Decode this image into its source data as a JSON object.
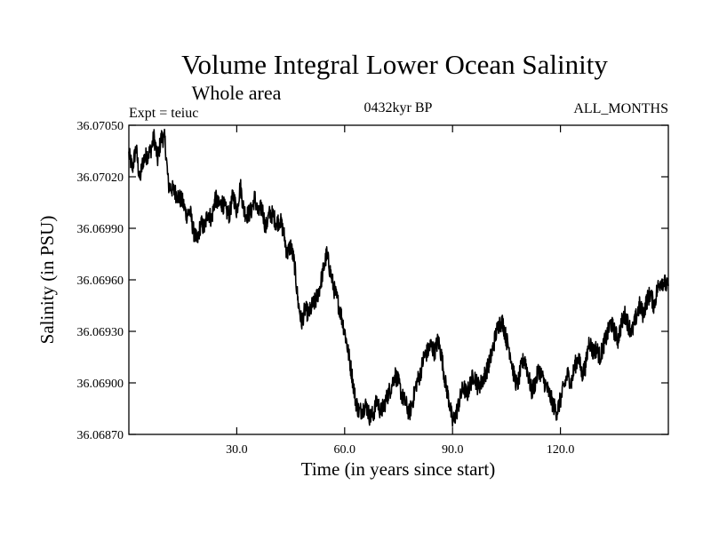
{
  "chart_data": {
    "type": "line",
    "title": "Volume Integral Lower Ocean Salinity",
    "subtitle": "Whole area",
    "label_left": "Expt = teiuc",
    "label_center": "0432kyr BP",
    "label_right": "ALL_MONTHS",
    "xlabel": "Time (in years since start)",
    "ylabel": "Salinity (in PSU)",
    "xlim": [
      0,
      150
    ],
    "ylim": [
      36.0687,
      36.0705
    ],
    "xticks": [
      30,
      60,
      90,
      120
    ],
    "xtick_labels": [
      "30.0",
      "60.0",
      "90.0",
      "120.0"
    ],
    "yticks": [
      36.0687,
      36.069,
      36.0693,
      36.0696,
      36.0699,
      36.0702,
      36.0705
    ],
    "ytick_labels": [
      "36.06870",
      "36.06900",
      "36.06930",
      "36.06960",
      "36.06990",
      "36.07020",
      "36.07050"
    ],
    "anchors": [
      [
        0,
        36.07033
      ],
      [
        1,
        36.07025
      ],
      [
        2,
        36.07037
      ],
      [
        3,
        36.07018
      ],
      [
        4,
        36.0703
      ],
      [
        6,
        36.07035
      ],
      [
        7,
        36.07043
      ],
      [
        8,
        36.0703
      ],
      [
        9,
        36.07043
      ],
      [
        10,
        36.07042
      ],
      [
        11,
        36.07015
      ],
      [
        12,
        36.07013
      ],
      [
        14,
        36.07008
      ],
      [
        15,
        36.07005
      ],
      [
        16,
        36.06998
      ],
      [
        17,
        36.07
      ],
      [
        18,
        36.06988
      ],
      [
        19,
        36.06982
      ],
      [
        20,
        36.06993
      ],
      [
        21,
        36.0699
      ],
      [
        22,
        36.07
      ],
      [
        23,
        36.06995
      ],
      [
        24,
        36.07008
      ],
      [
        25,
        36.07003
      ],
      [
        26,
        36.07005
      ],
      [
        27,
        36.07
      ],
      [
        28,
        36.06998
      ],
      [
        29,
        36.0701
      ],
      [
        30,
        36.07
      ],
      [
        31,
        36.07015
      ],
      [
        32,
        36.07
      ],
      [
        33,
        36.06998
      ],
      [
        34,
        36.07
      ],
      [
        35,
        36.07008
      ],
      [
        36,
        36.06998
      ],
      [
        37,
        36.07003
      ],
      [
        38,
        36.0699
      ],
      [
        39,
        36.06998
      ],
      [
        40,
        36.06998
      ],
      [
        41,
        36.06993
      ],
      [
        42,
        36.06995
      ],
      [
        43,
        36.06988
      ],
      [
        44,
        36.06975
      ],
      [
        45,
        36.0698
      ],
      [
        46,
        36.0697
      ],
      [
        47,
        36.06948
      ],
      [
        48,
        36.06935
      ],
      [
        49,
        36.06943
      ],
      [
        50,
        36.0694
      ],
      [
        51,
        36.06945
      ],
      [
        52,
        36.06948
      ],
      [
        53,
        36.06955
      ],
      [
        54,
        36.06965
      ],
      [
        55,
        36.06975
      ],
      [
        56,
        36.06965
      ],
      [
        57,
        36.06955
      ],
      [
        58,
        36.06948
      ],
      [
        59,
        36.0694
      ],
      [
        60,
        36.0693
      ],
      [
        61,
        36.06918
      ],
      [
        62,
        36.06905
      ],
      [
        63,
        36.0689
      ],
      [
        64,
        36.06883
      ],
      [
        65,
        36.06885
      ],
      [
        66,
        36.06887
      ],
      [
        67,
        36.0688
      ],
      [
        68,
        36.06882
      ],
      [
        69,
        36.0689
      ],
      [
        70,
        36.06883
      ],
      [
        71,
        36.06887
      ],
      [
        72,
        36.06893
      ],
      [
        73,
        36.06898
      ],
      [
        74,
        36.06905
      ],
      [
        75,
        36.069
      ],
      [
        76,
        36.06892
      ],
      [
        77,
        36.06888
      ],
      [
        78,
        36.06882
      ],
      [
        79,
        36.0689
      ],
      [
        80,
        36.069
      ],
      [
        81,
        36.06905
      ],
      [
        82,
        36.06915
      ],
      [
        83,
        36.06918
      ],
      [
        84,
        36.06922
      ],
      [
        85,
        36.06918
      ],
      [
        86,
        36.06925
      ],
      [
        87,
        36.06915
      ],
      [
        88,
        36.069
      ],
      [
        89,
        36.0689
      ],
      [
        90,
        36.06877
      ],
      [
        91,
        36.06882
      ],
      [
        92,
        36.0689
      ],
      [
        93,
        36.06898
      ],
      [
        94,
        36.06893
      ],
      [
        95,
        36.069
      ],
      [
        96,
        36.06905
      ],
      [
        97,
        36.06898
      ],
      [
        98,
        36.069
      ],
      [
        99,
        36.06905
      ],
      [
        100,
        36.0691
      ],
      [
        101,
        36.06918
      ],
      [
        102,
        36.06928
      ],
      [
        103,
        36.06935
      ],
      [
        104,
        36.06935
      ],
      [
        105,
        36.06925
      ],
      [
        106,
        36.06918
      ],
      [
        107,
        36.06905
      ],
      [
        108,
        36.06898
      ],
      [
        109,
        36.06908
      ],
      [
        110,
        36.06915
      ],
      [
        111,
        36.06905
      ],
      [
        112,
        36.06895
      ],
      [
        113,
        36.069
      ],
      [
        114,
        36.06908
      ],
      [
        115,
        36.06903
      ],
      [
        116,
        36.06898
      ],
      [
        117,
        36.06893
      ],
      [
        118,
        36.06887
      ],
      [
        119,
        36.06883
      ],
      [
        120,
        36.0689
      ],
      [
        121,
        36.06898
      ],
      [
        122,
        36.06905
      ],
      [
        123,
        36.069
      ],
      [
        124,
        36.0691
      ],
      [
        125,
        36.06915
      ],
      [
        126,
        36.06905
      ],
      [
        127,
        36.0691
      ],
      [
        128,
        36.06925
      ],
      [
        129,
        36.06918
      ],
      [
        130,
        36.0692
      ],
      [
        131,
        36.06915
      ],
      [
        132,
        36.06922
      ],
      [
        133,
        36.06928
      ],
      [
        134,
        36.06935
      ],
      [
        135,
        36.0693
      ],
      [
        136,
        36.06925
      ],
      [
        137,
        36.06935
      ],
      [
        138,
        36.0694
      ],
      [
        139,
        36.06933
      ],
      [
        140,
        36.0693
      ],
      [
        141,
        36.06938
      ],
      [
        142,
        36.06945
      ],
      [
        143,
        36.0694
      ],
      [
        144,
        36.06948
      ],
      [
        145,
        36.06952
      ],
      [
        146,
        36.06945
      ],
      [
        147,
        36.06955
      ],
      [
        148,
        36.0696
      ],
      [
        149,
        36.06958
      ],
      [
        150,
        36.06955
      ]
    ],
    "noise_amplitude": 5.5e-05,
    "samples_per_year": 12
  }
}
